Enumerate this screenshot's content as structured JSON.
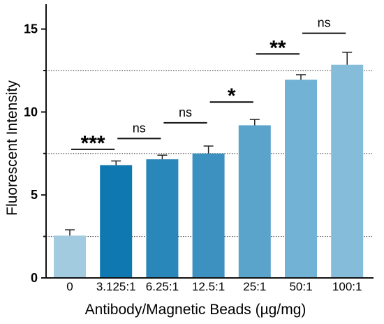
{
  "chart_data": {
    "type": "bar",
    "categories": [
      "0",
      "3.125:1",
      "6.25:1",
      "12.5:1",
      "25:1",
      "50:1",
      "100:1"
    ],
    "values": [
      2.55,
      6.8,
      7.15,
      7.5,
      9.2,
      11.95,
      12.85
    ],
    "errors": [
      0.35,
      0.25,
      0.25,
      0.45,
      0.35,
      0.3,
      0.75
    ],
    "bar_colors": [
      "#a3cbe0",
      "#0f78b0",
      "#2a87b9",
      "#3d91c0",
      "#5aa4cb",
      "#72b2d5",
      "#84bcda"
    ],
    "xlabel": "Antibody/Magnetic Beads (µg/mg)",
    "ylabel": "Fluorescent Intensity",
    "ylim": [
      0,
      16.5
    ],
    "yticks": [
      0,
      5,
      10,
      15
    ],
    "reference_lines": [
      2.5,
      7.5,
      12.5
    ],
    "significance": [
      {
        "from": 0,
        "to": 1,
        "label": "***",
        "y": 7.75
      },
      {
        "from": 1,
        "to": 2,
        "label": "ns",
        "y": 8.4
      },
      {
        "from": 2,
        "to": 3,
        "label": "ns",
        "y": 9.35
      },
      {
        "from": 3,
        "to": 4,
        "label": "*",
        "y": 10.6
      },
      {
        "from": 4,
        "to": 5,
        "label": "**",
        "y": 13.5
      },
      {
        "from": 5,
        "to": 6,
        "label": "ns",
        "y": 14.75
      }
    ]
  }
}
